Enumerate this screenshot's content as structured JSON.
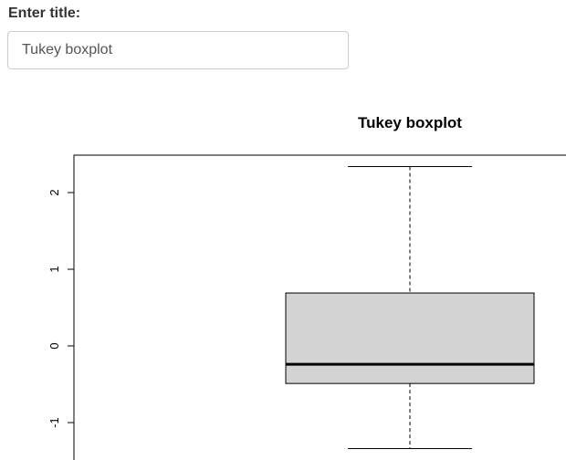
{
  "form": {
    "title_label": "Enter title:",
    "title_value": "Tukey boxplot"
  },
  "chart_data": {
    "type": "boxplot",
    "title": "Tukey boxplot",
    "xlabel": "",
    "ylabel": "",
    "ylim": [
      -1.5,
      2.5
    ],
    "yticks": [
      -1,
      0,
      1,
      2
    ],
    "ytick_labels": [
      "-1",
      "0",
      "1",
      "2"
    ],
    "box": {
      "lower_whisker": -1.34,
      "q1": -0.49,
      "median": -0.24,
      "q3": 0.69,
      "upper_whisker": 2.34
    },
    "box_fill": "#d3d3d3"
  }
}
